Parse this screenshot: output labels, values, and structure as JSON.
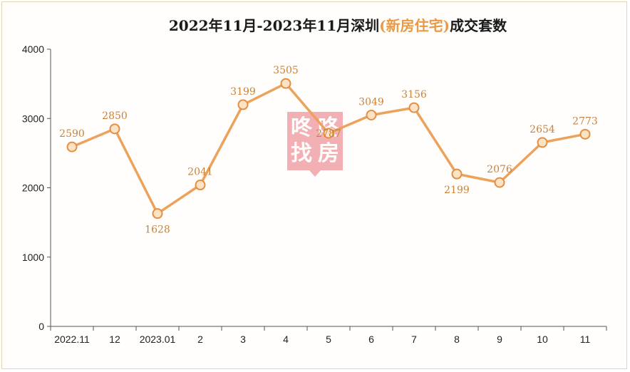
{
  "chart_data": {
    "type": "line",
    "title_parts": [
      {
        "text": "2022年11月-2023年11月深圳",
        "accent": false
      },
      {
        "text": "(新房住宅)",
        "accent": true
      },
      {
        "text": "成交套数",
        "accent": false
      }
    ],
    "categories": [
      "2022.11",
      "12",
      "2023.01",
      "2",
      "3",
      "4",
      "5",
      "6",
      "7",
      "8",
      "9",
      "10",
      "11"
    ],
    "values": [
      2590,
      2850,
      1628,
      2041,
      3199,
      3505,
      2787,
      3049,
      3156,
      2199,
      2076,
      2654,
      2773
    ],
    "yticks": [
      0,
      1000,
      2000,
      3000,
      4000
    ],
    "ylim": [
      0,
      4000
    ],
    "grid": false,
    "legend": "none",
    "label_positions": [
      "above",
      "above",
      "below",
      "above",
      "above",
      "above",
      "center",
      "above",
      "above",
      "below",
      "above",
      "above",
      "above"
    ],
    "colors": {
      "line": "#eca25a",
      "marker_fill": "#fbe3c4",
      "marker_stroke": "#e38f43",
      "label": "#c9823a",
      "title_accent": "#e89a47",
      "title": "#1a1a1a",
      "axis": "#555555"
    }
  },
  "watermark": {
    "chars": [
      "咚",
      "咚",
      "找",
      "房"
    ],
    "color": "#e8707a"
  }
}
